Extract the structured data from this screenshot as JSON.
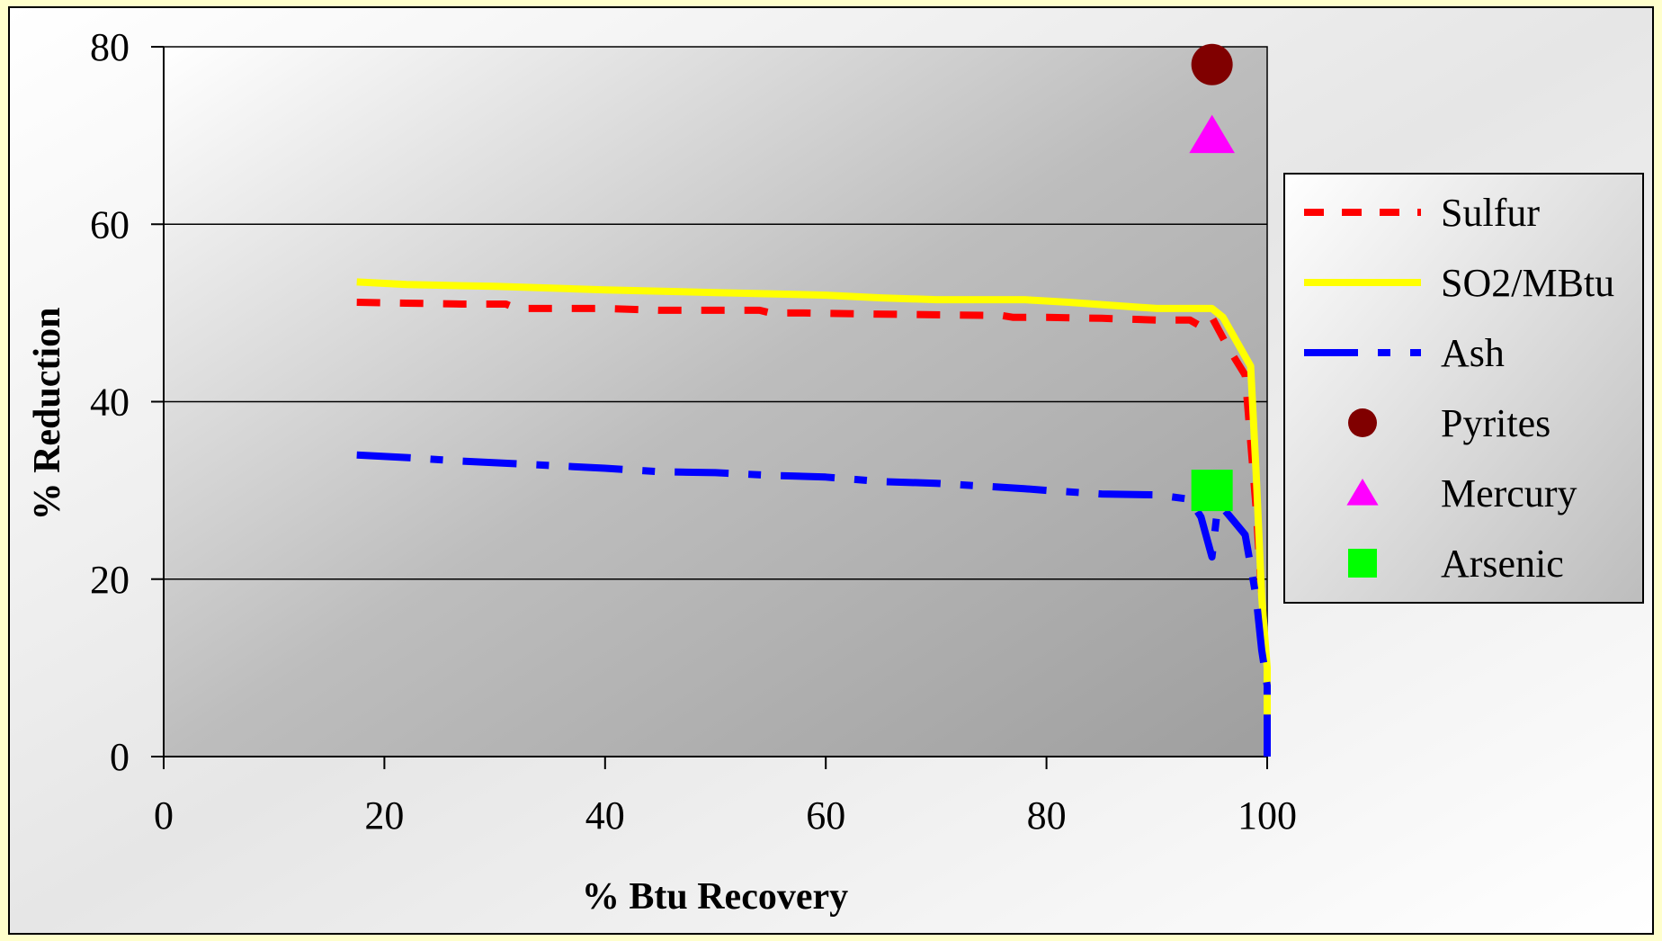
{
  "chart_data": {
    "type": "line",
    "title": "",
    "xlabel": "% Btu Recovery",
    "ylabel": "% Reduction",
    "xlim": [
      0,
      100
    ],
    "ylim": [
      0,
      80
    ],
    "x_ticks": [
      "0",
      "20",
      "40",
      "60",
      "80",
      "100"
    ],
    "y_ticks": [
      "0",
      "20",
      "40",
      "60",
      "80"
    ],
    "x_tick_values": [
      0,
      20,
      40,
      60,
      80,
      100
    ],
    "y_tick_values": [
      0,
      20,
      40,
      60,
      80
    ],
    "grid": "horizontal",
    "legend_position": "right",
    "series": [
      {
        "name": "Sulfur",
        "style": "dashed",
        "color": "#FF0000",
        "x": [
          17.5,
          22,
          27,
          31,
          32,
          35,
          40,
          45,
          50,
          54,
          55,
          58,
          63,
          69,
          76,
          77,
          80,
          85,
          90,
          93,
          94,
          95,
          96.5,
          98,
          99,
          99.5,
          99.8,
          100
        ],
        "y": [
          51.2,
          51.1,
          51,
          51,
          50.5,
          50.5,
          50.5,
          50.3,
          50.3,
          50.3,
          50,
          50,
          49.9,
          49.8,
          49.7,
          49.5,
          49.5,
          49.4,
          49.2,
          49.2,
          48.5,
          49.5,
          46,
          43,
          28,
          18,
          12,
          12
        ]
      },
      {
        "name": "SO2/MBtu",
        "style": "solid",
        "color": "#FFFF00",
        "x": [
          17.5,
          22,
          30,
          40,
          50,
          60,
          65,
          70,
          78,
          82,
          90,
          95,
          96,
          98.5,
          99,
          99.5,
          100,
          100
        ],
        "y": [
          53.5,
          53.2,
          53,
          52.6,
          52.3,
          52,
          51.7,
          51.5,
          51.5,
          51.2,
          50.5,
          50.5,
          49.5,
          44,
          32,
          18,
          10,
          0
        ]
      },
      {
        "name": "Ash",
        "style": "dashdot",
        "color": "#0000FF",
        "x": [
          17.5,
          22,
          27,
          32,
          40,
          45,
          50,
          55,
          60,
          65,
          70,
          78,
          80,
          85,
          90,
          93,
          94,
          95,
          95.5,
          96,
          97,
          98,
          99,
          99.5,
          100,
          100
        ],
        "y": [
          34,
          33.7,
          33.3,
          33,
          32.5,
          32.1,
          32,
          31.7,
          31.5,
          31,
          30.8,
          30.2,
          30,
          29.6,
          29.5,
          29,
          27,
          22.5,
          28,
          28,
          26.5,
          25,
          18,
          12,
          8,
          0
        ]
      }
    ],
    "markers": [
      {
        "name": "Pyrites",
        "shape": "circle",
        "color": "#800000",
        "x": 95,
        "y": 78
      },
      {
        "name": "Mercury",
        "shape": "triangle",
        "color": "#FF00FF",
        "x": 95,
        "y": 70
      },
      {
        "name": "Arsenic",
        "shape": "square",
        "color": "#00FF00",
        "x": 95,
        "y": 30
      }
    ],
    "legend": [
      "Sulfur",
      "SO2/MBtu",
      "Ash",
      "Pyrites",
      "Mercury",
      "Arsenic"
    ]
  }
}
